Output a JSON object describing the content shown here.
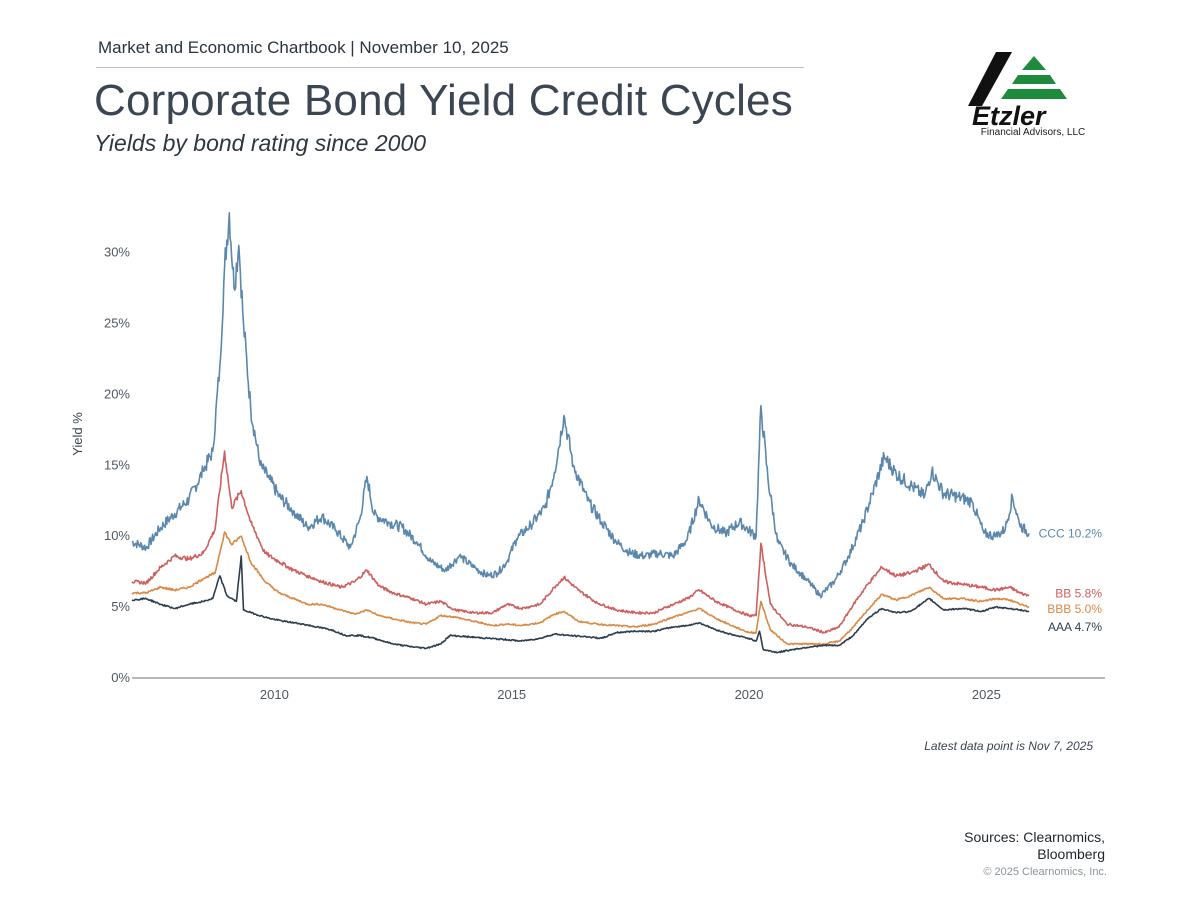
{
  "header": {
    "kicker": "Market and Economic Chartbook | November 10, 2025",
    "title": "Corporate Bond Yield Credit Cycles",
    "subtitle": "Yields by bond rating since 2000"
  },
  "logo": {
    "name": "Etzler",
    "caption": "Financial Advisors, LLC",
    "colors": {
      "dark": "#111111",
      "green": "#1e8a3c"
    }
  },
  "footer": {
    "note": "Latest data point is Nov 7, 2025",
    "sources_line1": "Sources: Clearnomics,",
    "sources_line2": "Bloomberg",
    "copyright": "© 2025 Clearnomics, Inc."
  },
  "chart_data": {
    "type": "line",
    "title": "Corporate Bond Yield Credit Cycles",
    "xlabel": "",
    "ylabel": "Yield %",
    "xlim": [
      2007.0,
      2027.5
    ],
    "ylim": [
      0,
      33
    ],
    "x_ticks": [
      2010,
      2015,
      2020,
      2025
    ],
    "x_tick_labels": [
      "2010",
      "2015",
      "2020",
      "2025"
    ],
    "y_ticks": [
      0,
      5,
      10,
      15,
      20,
      25,
      30
    ],
    "y_tick_labels": [
      "0%",
      "5%",
      "10%",
      "15%",
      "20%",
      "25%",
      "30%"
    ],
    "grid": false,
    "series": [
      {
        "name": "CCC",
        "label": "CCC 10.2%",
        "color": "#5b87ad",
        "points": [
          [
            2007.0,
            9.6
          ],
          [
            2007.3,
            9.2
          ],
          [
            2007.6,
            10.6
          ],
          [
            2007.9,
            11.6
          ],
          [
            2008.2,
            12.6
          ],
          [
            2008.5,
            14.6
          ],
          [
            2008.7,
            16.0
          ],
          [
            2008.85,
            22.0
          ],
          [
            2008.95,
            29.0
          ],
          [
            2009.05,
            32.8
          ],
          [
            2009.15,
            27.5
          ],
          [
            2009.25,
            30.5
          ],
          [
            2009.35,
            25.0
          ],
          [
            2009.5,
            19.0
          ],
          [
            2009.7,
            15.0
          ],
          [
            2009.9,
            14.0
          ],
          [
            2010.1,
            12.8
          ],
          [
            2010.4,
            11.8
          ],
          [
            2010.7,
            10.6
          ],
          [
            2011.0,
            11.4
          ],
          [
            2011.3,
            10.4
          ],
          [
            2011.6,
            9.2
          ],
          [
            2011.8,
            11.2
          ],
          [
            2011.95,
            14.2
          ],
          [
            2012.1,
            11.5
          ],
          [
            2012.4,
            11.0
          ],
          [
            2012.7,
            10.6
          ],
          [
            2013.0,
            9.6
          ],
          [
            2013.3,
            8.2
          ],
          [
            2013.6,
            7.6
          ],
          [
            2013.9,
            8.6
          ],
          [
            2014.2,
            7.8
          ],
          [
            2014.5,
            7.2
          ],
          [
            2014.7,
            7.4
          ],
          [
            2014.9,
            8.2
          ],
          [
            2015.1,
            9.8
          ],
          [
            2015.4,
            10.8
          ],
          [
            2015.7,
            12.0
          ],
          [
            2015.9,
            14.5
          ],
          [
            2016.1,
            18.5
          ],
          [
            2016.3,
            15.0
          ],
          [
            2016.6,
            12.5
          ],
          [
            2016.9,
            11.0
          ],
          [
            2017.2,
            9.6
          ],
          [
            2017.5,
            8.8
          ],
          [
            2017.8,
            8.6
          ],
          [
            2018.1,
            8.8
          ],
          [
            2018.4,
            8.6
          ],
          [
            2018.7,
            9.8
          ],
          [
            2018.95,
            12.6
          ],
          [
            2019.2,
            10.8
          ],
          [
            2019.5,
            10.2
          ],
          [
            2019.8,
            11.0
          ],
          [
            2020.0,
            10.4
          ],
          [
            2020.15,
            10.0
          ],
          [
            2020.25,
            19.2
          ],
          [
            2020.4,
            14.0
          ],
          [
            2020.6,
            9.6
          ],
          [
            2020.9,
            8.0
          ],
          [
            2021.2,
            7.0
          ],
          [
            2021.5,
            5.8
          ],
          [
            2021.8,
            6.8
          ],
          [
            2022.1,
            8.6
          ],
          [
            2022.4,
            11.0
          ],
          [
            2022.6,
            13.0
          ],
          [
            2022.85,
            15.6
          ],
          [
            2023.1,
            14.4
          ],
          [
            2023.4,
            13.6
          ],
          [
            2023.7,
            12.8
          ],
          [
            2023.85,
            14.6
          ],
          [
            2024.1,
            13.0
          ],
          [
            2024.4,
            12.8
          ],
          [
            2024.7,
            12.4
          ],
          [
            2024.95,
            10.2
          ],
          [
            2025.2,
            10.0
          ],
          [
            2025.4,
            10.5
          ],
          [
            2025.55,
            12.8
          ],
          [
            2025.7,
            10.8
          ],
          [
            2025.9,
            10.2
          ]
        ]
      },
      {
        "name": "BB",
        "label": "BB 5.8%",
        "color": "#cf5f5f",
        "points": [
          [
            2007.0,
            6.8
          ],
          [
            2007.3,
            6.7
          ],
          [
            2007.6,
            7.8
          ],
          [
            2007.9,
            8.6
          ],
          [
            2008.2,
            8.4
          ],
          [
            2008.5,
            8.8
          ],
          [
            2008.75,
            10.5
          ],
          [
            2008.95,
            16.0
          ],
          [
            2009.1,
            12.0
          ],
          [
            2009.3,
            13.2
          ],
          [
            2009.5,
            11.0
          ],
          [
            2009.8,
            8.8
          ],
          [
            2010.1,
            8.2
          ],
          [
            2010.4,
            7.6
          ],
          [
            2010.7,
            7.2
          ],
          [
            2011.0,
            6.8
          ],
          [
            2011.4,
            6.4
          ],
          [
            2011.7,
            6.8
          ],
          [
            2011.95,
            7.6
          ],
          [
            2012.2,
            6.5
          ],
          [
            2012.5,
            6.0
          ],
          [
            2012.9,
            5.6
          ],
          [
            2013.2,
            5.2
          ],
          [
            2013.5,
            5.4
          ],
          [
            2013.8,
            4.8
          ],
          [
            2014.2,
            4.6
          ],
          [
            2014.6,
            4.6
          ],
          [
            2014.9,
            5.2
          ],
          [
            2015.2,
            4.9
          ],
          [
            2015.6,
            5.2
          ],
          [
            2015.9,
            6.4
          ],
          [
            2016.1,
            7.1
          ],
          [
            2016.4,
            6.2
          ],
          [
            2016.8,
            5.3
          ],
          [
            2017.2,
            4.8
          ],
          [
            2017.6,
            4.6
          ],
          [
            2018.0,
            4.6
          ],
          [
            2018.4,
            5.2
          ],
          [
            2018.7,
            5.6
          ],
          [
            2018.95,
            6.2
          ],
          [
            2019.3,
            5.4
          ],
          [
            2019.7,
            4.8
          ],
          [
            2020.0,
            4.4
          ],
          [
            2020.15,
            4.4
          ],
          [
            2020.25,
            9.5
          ],
          [
            2020.45,
            5.2
          ],
          [
            2020.8,
            3.8
          ],
          [
            2021.2,
            3.6
          ],
          [
            2021.6,
            3.2
          ],
          [
            2021.9,
            3.6
          ],
          [
            2022.2,
            5.2
          ],
          [
            2022.5,
            6.6
          ],
          [
            2022.8,
            7.8
          ],
          [
            2023.1,
            7.2
          ],
          [
            2023.4,
            7.4
          ],
          [
            2023.8,
            8.0
          ],
          [
            2024.1,
            6.8
          ],
          [
            2024.5,
            6.6
          ],
          [
            2024.9,
            6.4
          ],
          [
            2025.2,
            6.2
          ],
          [
            2025.5,
            6.4
          ],
          [
            2025.7,
            6.0
          ],
          [
            2025.9,
            5.8
          ]
        ]
      },
      {
        "name": "BBB",
        "label": "BBB 5.0%",
        "color": "#d98a45",
        "points": [
          [
            2007.0,
            6.0
          ],
          [
            2007.3,
            6.0
          ],
          [
            2007.6,
            6.4
          ],
          [
            2007.9,
            6.2
          ],
          [
            2008.2,
            6.4
          ],
          [
            2008.5,
            7.0
          ],
          [
            2008.75,
            7.4
          ],
          [
            2008.95,
            10.3
          ],
          [
            2009.1,
            9.4
          ],
          [
            2009.3,
            10.0
          ],
          [
            2009.5,
            8.2
          ],
          [
            2009.8,
            6.8
          ],
          [
            2010.1,
            6.0
          ],
          [
            2010.4,
            5.6
          ],
          [
            2010.7,
            5.2
          ],
          [
            2011.0,
            5.2
          ],
          [
            2011.4,
            4.8
          ],
          [
            2011.7,
            4.5
          ],
          [
            2011.95,
            4.8
          ],
          [
            2012.2,
            4.4
          ],
          [
            2012.6,
            4.1
          ],
          [
            2012.9,
            3.9
          ],
          [
            2013.2,
            3.8
          ],
          [
            2013.5,
            4.4
          ],
          [
            2013.8,
            4.3
          ],
          [
            2014.2,
            4.0
          ],
          [
            2014.6,
            3.7
          ],
          [
            2014.9,
            3.8
          ],
          [
            2015.2,
            3.7
          ],
          [
            2015.6,
            3.9
          ],
          [
            2015.9,
            4.5
          ],
          [
            2016.1,
            4.7
          ],
          [
            2016.4,
            4.0
          ],
          [
            2016.8,
            3.8
          ],
          [
            2017.2,
            3.7
          ],
          [
            2017.6,
            3.6
          ],
          [
            2018.0,
            3.8
          ],
          [
            2018.4,
            4.3
          ],
          [
            2018.7,
            4.6
          ],
          [
            2018.95,
            4.9
          ],
          [
            2019.3,
            4.2
          ],
          [
            2019.7,
            3.6
          ],
          [
            2020.0,
            3.2
          ],
          [
            2020.15,
            3.2
          ],
          [
            2020.25,
            5.4
          ],
          [
            2020.45,
            3.4
          ],
          [
            2020.8,
            2.4
          ],
          [
            2021.2,
            2.4
          ],
          [
            2021.6,
            2.4
          ],
          [
            2021.9,
            2.6
          ],
          [
            2022.2,
            3.6
          ],
          [
            2022.5,
            4.8
          ],
          [
            2022.8,
            5.9
          ],
          [
            2023.1,
            5.5
          ],
          [
            2023.4,
            5.8
          ],
          [
            2023.8,
            6.4
          ],
          [
            2024.1,
            5.6
          ],
          [
            2024.5,
            5.6
          ],
          [
            2024.9,
            5.4
          ],
          [
            2025.2,
            5.6
          ],
          [
            2025.5,
            5.5
          ],
          [
            2025.7,
            5.2
          ],
          [
            2025.9,
            5.0
          ]
        ]
      },
      {
        "name": "AAA",
        "label": "AAA 4.7%",
        "color": "#2d3e4e",
        "points": [
          [
            2007.0,
            5.5
          ],
          [
            2007.3,
            5.6
          ],
          [
            2007.6,
            5.2
          ],
          [
            2007.9,
            4.9
          ],
          [
            2008.2,
            5.2
          ],
          [
            2008.5,
            5.4
          ],
          [
            2008.7,
            5.6
          ],
          [
            2008.85,
            7.2
          ],
          [
            2009.0,
            5.8
          ],
          [
            2009.2,
            5.4
          ],
          [
            2009.3,
            8.6
          ],
          [
            2009.35,
            4.8
          ],
          [
            2009.6,
            4.5
          ],
          [
            2009.9,
            4.2
          ],
          [
            2010.2,
            4.0
          ],
          [
            2010.6,
            3.8
          ],
          [
            2010.9,
            3.6
          ],
          [
            2011.2,
            3.4
          ],
          [
            2011.5,
            3.0
          ],
          [
            2011.8,
            3.0
          ],
          [
            2012.1,
            2.8
          ],
          [
            2012.5,
            2.4
          ],
          [
            2012.9,
            2.2
          ],
          [
            2013.2,
            2.1
          ],
          [
            2013.5,
            2.4
          ],
          [
            2013.7,
            3.0
          ],
          [
            2014.1,
            2.9
          ],
          [
            2014.5,
            2.8
          ],
          [
            2014.9,
            2.7
          ],
          [
            2015.2,
            2.6
          ],
          [
            2015.6,
            2.8
          ],
          [
            2015.9,
            3.1
          ],
          [
            2016.2,
            3.0
          ],
          [
            2016.6,
            2.9
          ],
          [
            2016.9,
            2.8
          ],
          [
            2017.2,
            3.2
          ],
          [
            2017.6,
            3.3
          ],
          [
            2018.0,
            3.3
          ],
          [
            2018.4,
            3.6
          ],
          [
            2018.7,
            3.7
          ],
          [
            2018.95,
            3.9
          ],
          [
            2019.3,
            3.4
          ],
          [
            2019.7,
            3.0
          ],
          [
            2020.0,
            2.8
          ],
          [
            2020.15,
            2.6
          ],
          [
            2020.22,
            3.3
          ],
          [
            2020.3,
            2.0
          ],
          [
            2020.6,
            1.8
          ],
          [
            2020.9,
            2.0
          ],
          [
            2021.3,
            2.2
          ],
          [
            2021.6,
            2.3
          ],
          [
            2021.9,
            2.3
          ],
          [
            2022.2,
            3.0
          ],
          [
            2022.5,
            4.2
          ],
          [
            2022.8,
            4.9
          ],
          [
            2023.1,
            4.6
          ],
          [
            2023.4,
            4.7
          ],
          [
            2023.8,
            5.6
          ],
          [
            2024.1,
            4.8
          ],
          [
            2024.5,
            4.9
          ],
          [
            2024.9,
            4.7
          ],
          [
            2025.2,
            5.0
          ],
          [
            2025.5,
            4.9
          ],
          [
            2025.7,
            4.8
          ],
          [
            2025.9,
            4.7
          ]
        ]
      }
    ],
    "annotations": [
      "CCC 10.2%",
      "BB 5.8%",
      "BBB 5.0%",
      "AAA 4.7%"
    ]
  }
}
